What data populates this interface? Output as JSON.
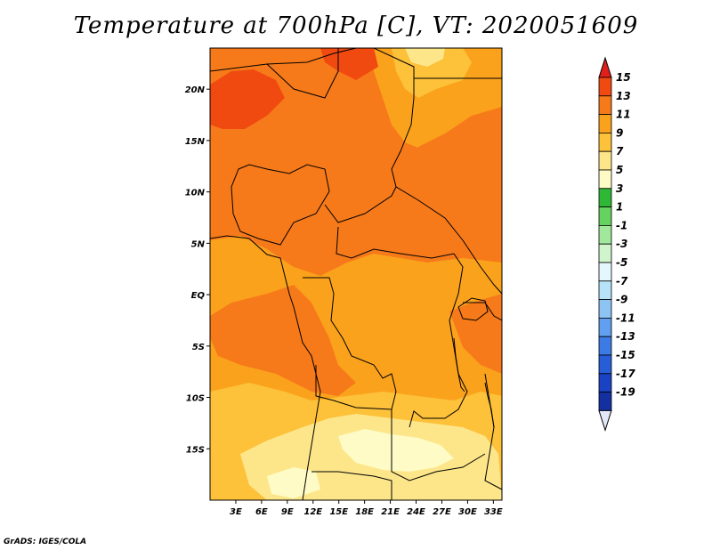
{
  "title": "Temperature at 700hPa [C], VT: 2020051609",
  "footer": "GrADS: IGES/COLA",
  "map": {
    "lon_range": [
      0,
      34
    ],
    "lat_range": [
      -20,
      24
    ],
    "lat_ticks": [
      {
        "value": 20,
        "label": "20N"
      },
      {
        "value": 15,
        "label": "15N"
      },
      {
        "value": 10,
        "label": "10N"
      },
      {
        "value": 5,
        "label": "5N"
      },
      {
        "value": 0,
        "label": "EQ"
      },
      {
        "value": -5,
        "label": "5S"
      },
      {
        "value": -10,
        "label": "10S"
      },
      {
        "value": -15,
        "label": "15S"
      }
    ],
    "lon_ticks": [
      {
        "value": 3,
        "label": "3E"
      },
      {
        "value": 6,
        "label": "6E"
      },
      {
        "value": 9,
        "label": "9E"
      },
      {
        "value": 12,
        "label": "12E"
      },
      {
        "value": 15,
        "label": "15E"
      },
      {
        "value": 18,
        "label": "18E"
      },
      {
        "value": 21,
        "label": "21E"
      },
      {
        "value": 24,
        "label": "24E"
      },
      {
        "value": 27,
        "label": "27E"
      },
      {
        "value": 30,
        "label": "30E"
      },
      {
        "value": 33,
        "label": "33E"
      }
    ]
  },
  "colorbar": {
    "labels": [
      "15",
      "13",
      "11",
      "9",
      "7",
      "5",
      "3",
      "1",
      "-1",
      "-3",
      "-5",
      "-7",
      "-9",
      "-11",
      "-13",
      "-15",
      "-17",
      "-19"
    ],
    "colors": [
      "#e8201a",
      "#f04a10",
      "#f77a1a",
      "#fba21c",
      "#fdc13a",
      "#fde68a",
      "#fefbc6",
      "#2fb835",
      "#66d260",
      "#a1e89c",
      "#d0f5cd",
      "#e3f7fd",
      "#b7e3f9",
      "#8ec4f3",
      "#619ff0",
      "#3c7be6",
      "#275ed8",
      "#1a42c4",
      "#132fa0",
      "#0b1c78"
    ],
    "top_arrow_color": "#e01e1a",
    "bottom_arrow_color": "#e2e8fa"
  },
  "field_colors": {
    "c13": "#f04a10",
    "c11": "#f77a1a",
    "c9": "#fba21c",
    "c7": "#fdc13a",
    "c5": "#fde68a",
    "c3": "#fefbc6"
  }
}
